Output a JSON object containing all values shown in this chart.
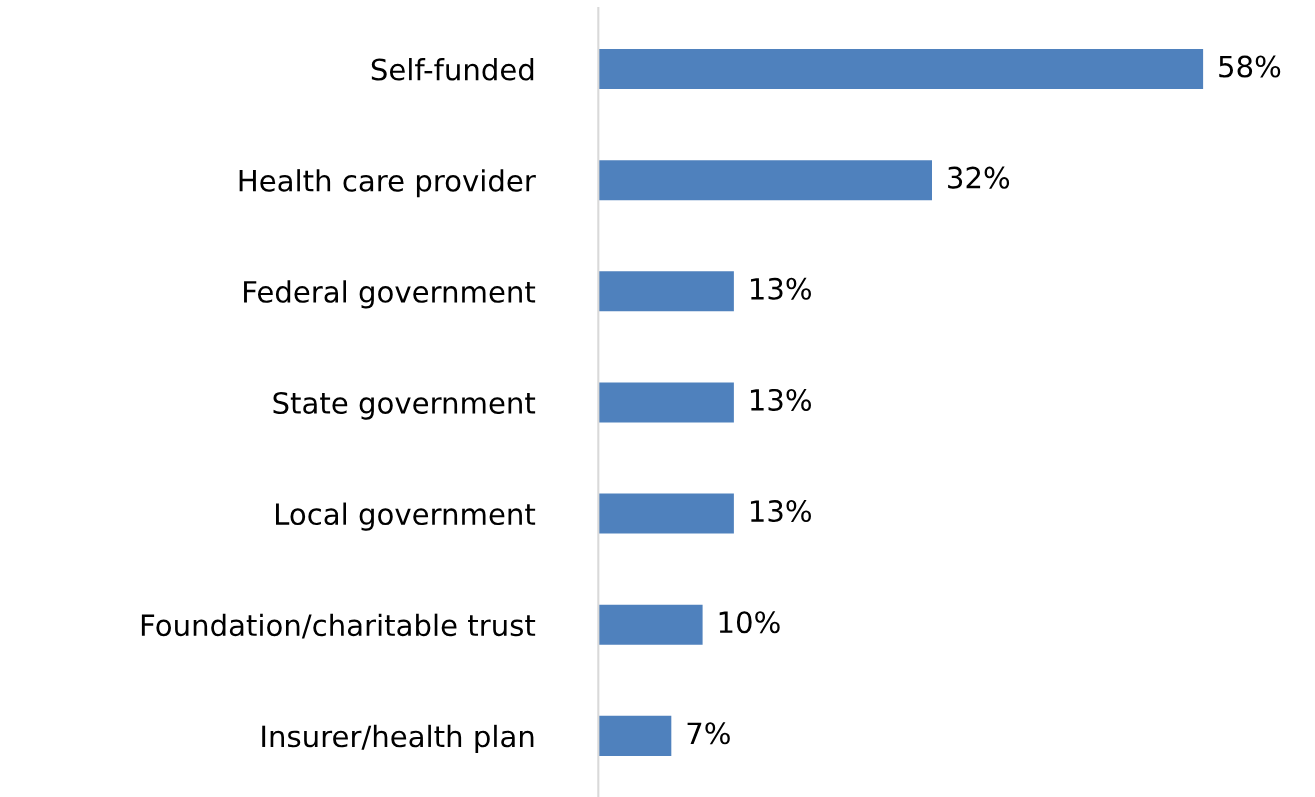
{
  "chart_data": {
    "type": "bar",
    "orientation": "horizontal",
    "categories": [
      "Self-funded",
      "Health care provider",
      "Federal government",
      "State government",
      "Local government",
      "Foundation/charitable trust",
      "Insurer/health plan"
    ],
    "values": [
      58,
      32,
      13,
      13,
      13,
      10,
      7
    ],
    "value_labels": [
      "58%",
      "32%",
      "13%",
      "13%",
      "13%",
      "10%",
      "7%"
    ],
    "color": "#4f81bd",
    "grid": false,
    "legend": false
  }
}
